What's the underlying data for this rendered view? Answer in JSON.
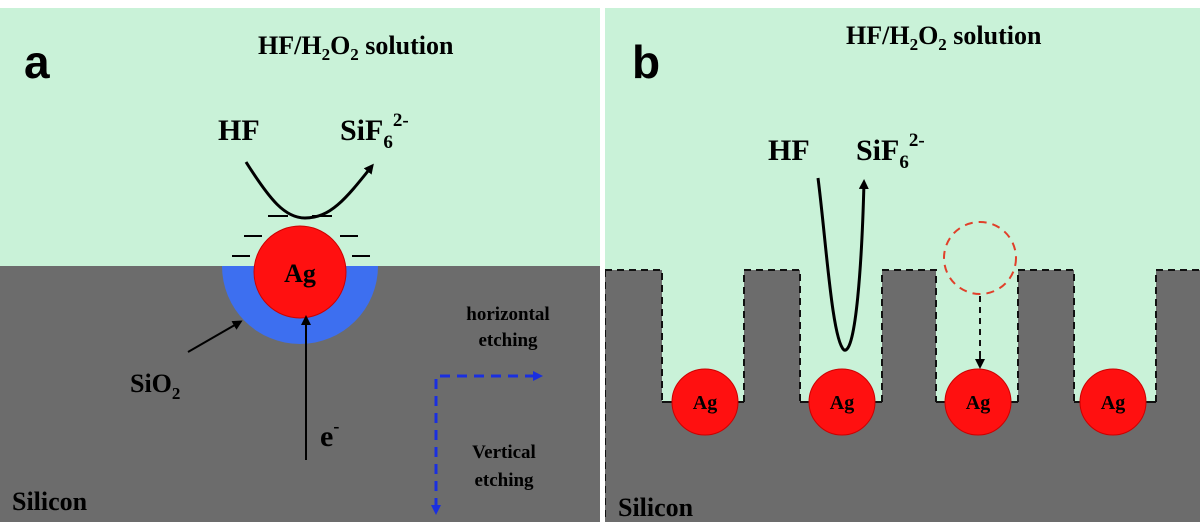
{
  "panels": [
    {
      "letter": "a",
      "solution": {
        "a": "HF/H",
        "b": "2",
        "c": "O",
        "d": "2",
        "e": " solution"
      },
      "reactant": "HF",
      "product": {
        "a": "SiF",
        "b": "6",
        "c": "2-"
      },
      "particles": [
        "Ag"
      ],
      "oxide": {
        "a": "SiO",
        "b": "2"
      },
      "electron": {
        "a": "e",
        "b": "-"
      },
      "horizontal": [
        "horizontal",
        "etching"
      ],
      "vertical": [
        "Vertical",
        "etching"
      ],
      "substrate": "Silicon"
    },
    {
      "letter": "b",
      "solution": {
        "a": "HF/H",
        "b": "2",
        "c": "O",
        "d": "2",
        "e": " solution"
      },
      "reactant": "HF",
      "product": {
        "a": "SiF",
        "b": "6",
        "c": "2-"
      },
      "particles": [
        "Ag",
        "Ag",
        "Ag",
        "Ag"
      ],
      "substrate": "Silicon"
    }
  ]
}
